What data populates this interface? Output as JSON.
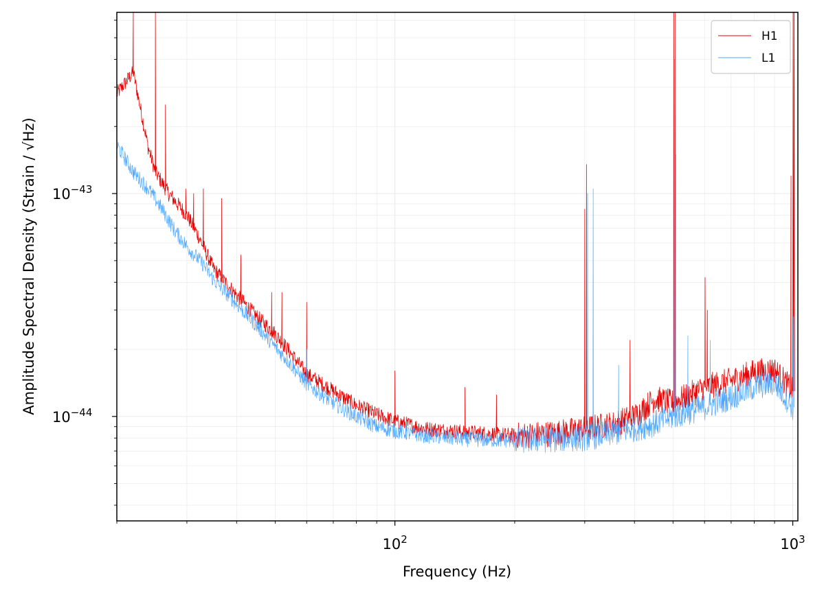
{
  "chart_data": {
    "type": "line",
    "title": "",
    "xlabel": "Frequency (Hz)",
    "ylabel": "Amplitude Spectral Density (Strain / √Hz)",
    "xscale": "log",
    "yscale": "log",
    "xlim": [
      20,
      1030
    ],
    "ylim": [
      3.4e-45,
      6.5e-43
    ],
    "x_ticks": [
      {
        "value": 100,
        "base": "10",
        "exp": "2"
      },
      {
        "value": 1000,
        "base": "10",
        "exp": "3"
      }
    ],
    "y_ticks": [
      {
        "value": 1e-44,
        "base": "10",
        "exp": "−44"
      },
      {
        "value": 1e-43,
        "base": "10",
        "exp": "−43"
      }
    ],
    "grid": true,
    "legend_position": "top-right",
    "series": [
      {
        "name": "H1",
        "color": "#e60000",
        "x": [
          20,
          22,
          24,
          25,
          27,
          30,
          32,
          35,
          40,
          45,
          50,
          55,
          60,
          70,
          80,
          90,
          100,
          120,
          150,
          200,
          250,
          300,
          350,
          400,
          450,
          500,
          550,
          600,
          700,
          800,
          900,
          1000
        ],
        "y": [
          2.8e-43,
          3.5e-43,
          1.6e-43,
          1.25e-43,
          1e-43,
          8e-44,
          6.5e-44,
          4.6e-44,
          3.5e-44,
          2.8e-44,
          2.35e-44,
          1.9e-44,
          1.55e-44,
          1.3e-44,
          1.12e-44,
          1.02e-44,
          9.5e-45,
          8.8e-45,
          8.5e-45,
          8.2e-45,
          8.4e-45,
          8.8e-45,
          9.2e-45,
          1e-44,
          1.2e-44,
          1.15e-44,
          1.25e-44,
          1.35e-44,
          1.45e-44,
          1.58e-44,
          1.62e-44,
          1.3e-44
        ],
        "spikes": [
          {
            "x": 22,
            "y": 6.5e-43
          },
          {
            "x": 25,
            "y": 6.5e-43
          },
          {
            "x": 26.5,
            "y": 2.5e-43
          },
          {
            "x": 29.8,
            "y": 1.05e-43
          },
          {
            "x": 31.2,
            "y": 1e-43
          },
          {
            "x": 33,
            "y": 1.05e-43
          },
          {
            "x": 36.7,
            "y": 9.5e-44
          },
          {
            "x": 41,
            "y": 5.3e-44
          },
          {
            "x": 49,
            "y": 3.6e-44
          },
          {
            "x": 52,
            "y": 3.6e-44
          },
          {
            "x": 60,
            "y": 3.25e-44
          },
          {
            "x": 100,
            "y": 1.6e-44
          },
          {
            "x": 150,
            "y": 1.35e-44
          },
          {
            "x": 180,
            "y": 1.25e-44
          },
          {
            "x": 300,
            "y": 8.5e-44
          },
          {
            "x": 303,
            "y": 1.35e-43
          },
          {
            "x": 390,
            "y": 2.2e-44
          },
          {
            "x": 502,
            "y": 6.5e-43
          },
          {
            "x": 506,
            "y": 6.5e-43
          },
          {
            "x": 602,
            "y": 4.2e-44
          },
          {
            "x": 610,
            "y": 3e-44
          },
          {
            "x": 990,
            "y": 1.2e-43
          },
          {
            "x": 1002,
            "y": 6.5e-43
          },
          {
            "x": 1008,
            "y": 6.5e-43
          }
        ]
      },
      {
        "name": "L1",
        "color": "#4da6ff",
        "x": [
          20,
          22,
          24,
          26,
          28,
          30,
          33,
          35,
          40,
          45,
          50,
          55,
          60,
          70,
          80,
          90,
          100,
          120,
          150,
          200,
          250,
          300,
          350,
          400,
          450,
          500,
          550,
          600,
          700,
          800,
          900,
          1000
        ],
        "y": [
          1.65e-43,
          1.25e-43,
          1.05e-43,
          8.5e-44,
          6.8e-44,
          5.8e-44,
          4.8e-44,
          4.1e-44,
          3.2e-44,
          2.55e-44,
          2.05e-44,
          1.7e-44,
          1.4e-44,
          1.15e-44,
          1e-44,
          9e-45,
          8.6e-45,
          8.2e-45,
          7.9e-45,
          7.8e-45,
          7.9e-45,
          8e-45,
          8.4e-45,
          8.8e-45,
          9.3e-45,
          1e-44,
          1.05e-44,
          1.1e-44,
          1.22e-44,
          1.35e-44,
          1.42e-44,
          1.1e-44
        ],
        "spikes": [
          {
            "x": 60,
            "y": 2e-44
          },
          {
            "x": 305,
            "y": 1e-43
          },
          {
            "x": 315,
            "y": 1.05e-43
          },
          {
            "x": 365,
            "y": 1.7e-44
          },
          {
            "x": 504,
            "y": 4e-43
          },
          {
            "x": 508,
            "y": 1.5e-43
          },
          {
            "x": 545,
            "y": 2.3e-44
          },
          {
            "x": 620,
            "y": 2.2e-44
          },
          {
            "x": 1005,
            "y": 2.8e-44
          }
        ]
      }
    ]
  }
}
